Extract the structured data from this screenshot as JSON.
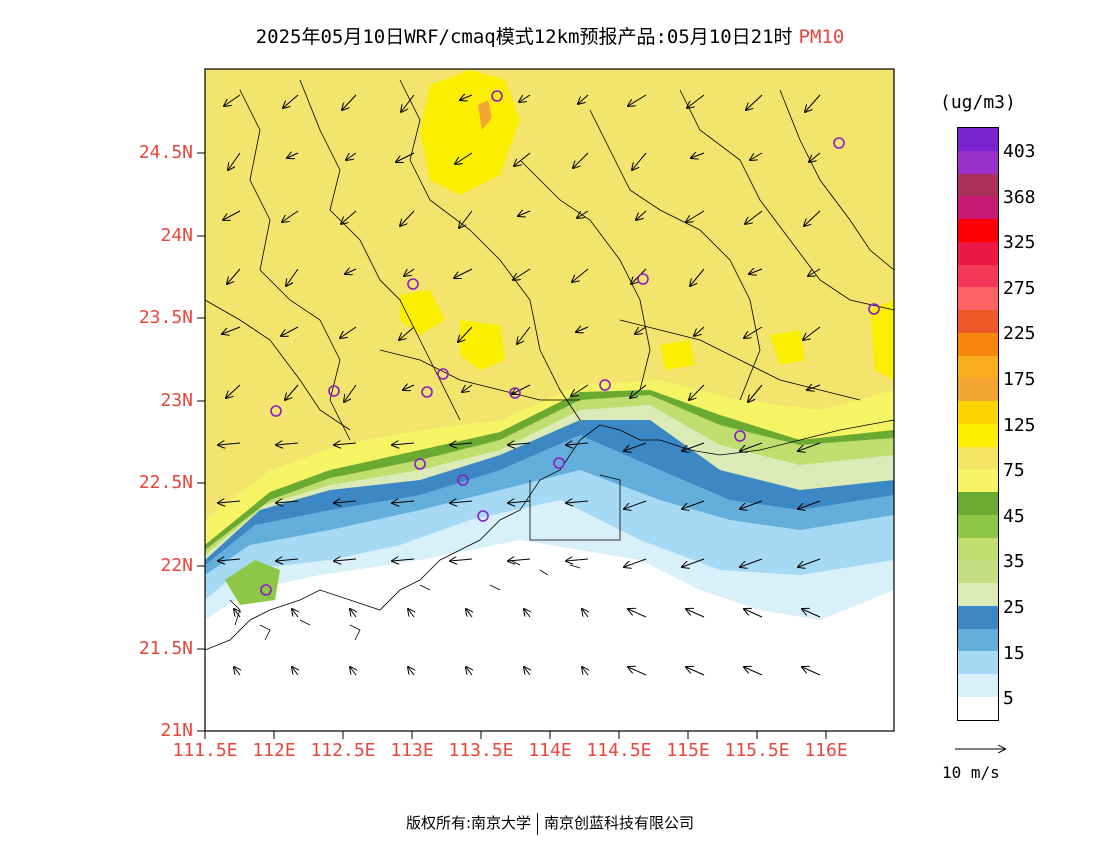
{
  "title": {
    "main": "2025年05月10日WRF/cmaq模式12km预报产品:05月10日21时",
    "variable": "PM10"
  },
  "lat_labels": [
    "24.5N",
    "24N",
    "23.5N",
    "23N",
    "22.5N",
    "22N",
    "21.5N",
    "21N"
  ],
  "lon_labels": [
    "111.5E",
    "112E",
    "112.5E",
    "113E",
    "113.5E",
    "114E",
    "114.5E",
    "115E",
    "115.5E",
    "116E"
  ],
  "legend": {
    "unit": "(ug/m3)",
    "ticks": [
      "403",
      "368",
      "325",
      "275",
      "225",
      "175",
      "125",
      "75",
      "45",
      "35",
      "25",
      "15",
      "5"
    ],
    "colors": [
      "#7b22d0",
      "#9832c8",
      "#a8305a",
      "#c61874",
      "#ff0000",
      "#ee1848",
      "#f4385a",
      "#fa6466",
      "#ee5828",
      "#f8860e",
      "#fcac20",
      "#f4a632",
      "#fcd400",
      "#fcee00",
      "#f4e462",
      "#f4f464",
      "#6aaa32",
      "#8ec646",
      "#c0de70",
      "#c6de80",
      "#dceab8",
      "#3c88c4",
      "#64aedc",
      "#a6daf4",
      "#d8f0fa",
      "#ffffff"
    ]
  },
  "ref_vector_label": "10 m/s",
  "copyright": {
    "left": "版权所有:南京大学",
    "right": "南京创蓝科技有限公司"
  },
  "map_colors": {
    "base_yellow": "#f2e46c",
    "light_yellow": "#f4f464",
    "bright_yellow": "#fcee00",
    "green_dark": "#6aaa32",
    "green_mid": "#8ec646",
    "green_light": "#c0de70",
    "green_pale": "#dceab8",
    "blue_dark": "#3c88c4",
    "blue_mid": "#64aedc",
    "blue_light": "#a6daf4",
    "blue_pale": "#d8f0fa",
    "station": "#8a1cc8"
  }
}
